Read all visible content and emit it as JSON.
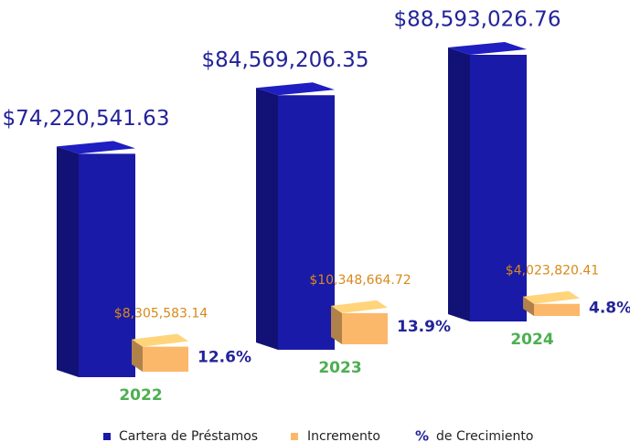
{
  "chart_data": {
    "type": "bar3d",
    "categories": [
      "2022",
      "2023",
      "2024"
    ],
    "series": [
      {
        "name": "Cartera de Préstamos",
        "color": "#1a1aa8",
        "values": [
          74220541.63,
          84569206.35,
          88593026.76
        ],
        "value_labels": [
          "$74,220,541.63",
          "$84,569,206.35",
          "$88,593,026.76"
        ]
      },
      {
        "name": "Incremento",
        "color": "#fbb86a",
        "values": [
          8305583.14,
          10348664.72,
          4023820.41
        ],
        "value_labels": [
          "$8,305,583.14",
          "$10,348,664.72",
          "$4,023,820.41"
        ]
      },
      {
        "name": "de Crecimiento",
        "symbol": "%",
        "color": "#23239a",
        "values": [
          12.6,
          13.9,
          4.8
        ],
        "value_labels": [
          "12.6%",
          "13.9%",
          "4.8%"
        ]
      }
    ]
  }
}
